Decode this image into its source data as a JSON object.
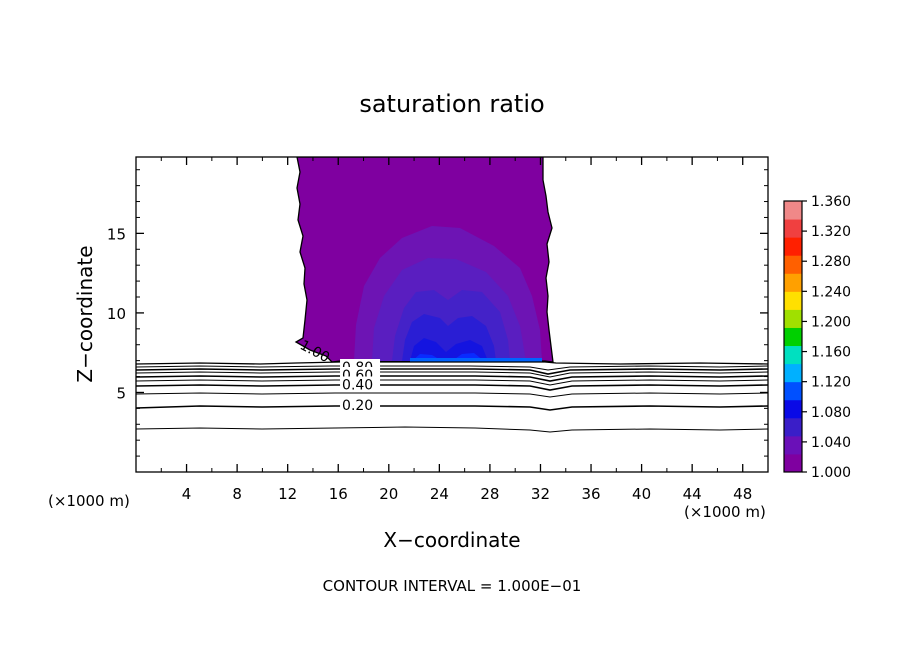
{
  "chart_data": {
    "type": "contour",
    "title": "saturation ratio",
    "xlabel": "X−coordinate",
    "ylabel": "Z−coordinate",
    "x_unit_left": "(×1000 m)",
    "x_unit_right": "(×1000 m)",
    "xlim": [
      0,
      50
    ],
    "ylim": [
      0,
      19.8
    ],
    "x_ticks": [
      4,
      8,
      12,
      16,
      20,
      24,
      28,
      32,
      36,
      40,
      44,
      48
    ],
    "y_ticks": [
      5,
      10,
      15
    ],
    "footer": "CONTOUR INTERVAL = 1.000E−01",
    "colorbar": {
      "min": 1.0,
      "max": 1.36,
      "labels": [
        "1.360",
        "1.320",
        "1.280",
        "1.240",
        "1.200",
        "1.160",
        "1.120",
        "1.080",
        "1.040",
        "1.000"
      ],
      "colors": [
        "#7f00a0",
        "#6a10b8",
        "#3a1ec8",
        "#0a0ae6",
        "#0050ff",
        "#00b0ff",
        "#00e0c0",
        "#00d000",
        "#a0e000",
        "#ffe000",
        "#ffa000",
        "#ff6000",
        "#ff2000",
        "#f04040",
        "#f08888"
      ]
    },
    "supersaturated_region": {
      "x_range": [
        13,
        33
      ],
      "z_range": [
        7.1,
        19.8
      ],
      "max_value_approx": 1.06
    },
    "contours": [
      {
        "level": 1.0,
        "label": "1.00",
        "z_mean": 7.0
      },
      {
        "level": 0.9,
        "label": "",
        "z_mean": 6.8
      },
      {
        "level": 0.8,
        "label": "0.80",
        "z_mean": 6.6
      },
      {
        "level": 0.7,
        "label": "",
        "z_mean": 6.4
      },
      {
        "level": 0.6,
        "label": "0.60",
        "z_mean": 6.1
      },
      {
        "level": 0.5,
        "label": "",
        "z_mean": 5.8
      },
      {
        "level": 0.4,
        "label": "0.40",
        "z_mean": 5.5
      },
      {
        "level": 0.3,
        "label": "",
        "z_mean": 5.0
      },
      {
        "level": 0.2,
        "label": "0.20",
        "z_mean": 4.2
      },
      {
        "level": 0.1,
        "label": "",
        "z_mean": 2.8
      }
    ]
  }
}
